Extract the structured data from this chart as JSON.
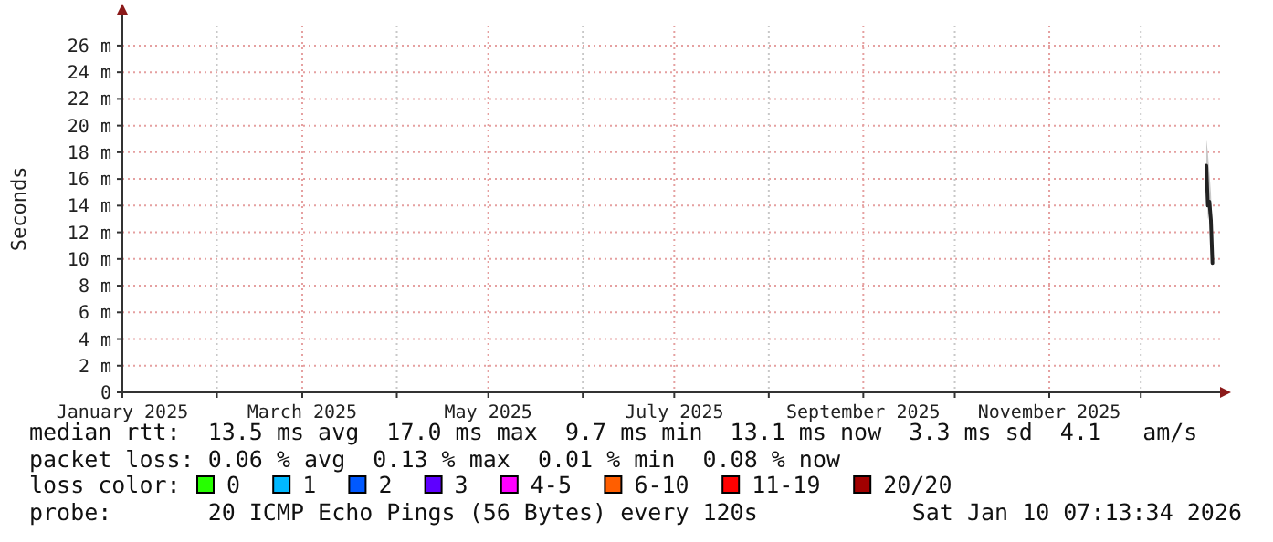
{
  "chart_data": {
    "type": "line",
    "ylabel": "Seconds",
    "xlim": [
      "2025-01-01",
      "2025-12-27"
    ],
    "xticks": [
      {
        "value": "2025-01-01",
        "label": "January 2025"
      },
      {
        "value": "2025-02-01",
        "label": null
      },
      {
        "value": "2025-03-01",
        "label": "March 2025"
      },
      {
        "value": "2025-04-01",
        "label": null
      },
      {
        "value": "2025-05-01",
        "label": "May 2025"
      },
      {
        "value": "2025-06-01",
        "label": null
      },
      {
        "value": "2025-07-01",
        "label": "July 2025"
      },
      {
        "value": "2025-08-01",
        "label": null
      },
      {
        "value": "2025-09-01",
        "label": "September 2025"
      },
      {
        "value": "2025-10-01",
        "label": null
      },
      {
        "value": "2025-11-01",
        "label": "November 2025"
      },
      {
        "value": "2025-12-01",
        "label": null
      }
    ],
    "ylim": [
      0,
      27.5
    ],
    "yticks": [
      0,
      {
        "value": 2,
        "label": "2 m"
      },
      {
        "value": 4,
        "label": "4 m"
      },
      {
        "value": 6,
        "label": "6 m"
      },
      {
        "value": 8,
        "label": "8 m"
      },
      {
        "value": 10,
        "label": "10 m"
      },
      {
        "value": 12,
        "label": "12 m"
      },
      {
        "value": 14,
        "label": "14 m"
      },
      {
        "value": 16,
        "label": "16 m"
      },
      {
        "value": 18,
        "label": "18 m"
      },
      {
        "value": 20,
        "label": "20 m"
      },
      {
        "value": 22,
        "label": "22 m"
      },
      {
        "value": 24,
        "label": "24 m"
      },
      {
        "value": 26,
        "label": "26 m"
      }
    ],
    "grid": true,
    "legend": "bottom",
    "legend_title": "loss color:",
    "series": [
      {
        "color": "#222222",
        "x": [
          "2025-12-22T12:00",
          "2025-12-23T00:00",
          "2025-12-23T12:00",
          "2025-12-24T00:00",
          "2025-12-24T12:00"
        ],
        "values": [
          17.0,
          14.0,
          14.3,
          12.9,
          9.7
        ],
        "lower": [
          16.5,
          13.0,
          13.5,
          11.5,
          9.5
        ],
        "upper": [
          19.0,
          18.0,
          16.5,
          15.0,
          12.0
        ]
      },
      {
        "name": "0",
        "color": "#26ff00"
      },
      {
        "name": "1",
        "color": "#00b8ff"
      },
      {
        "name": "2",
        "color": "#0059ff"
      },
      {
        "name": "3",
        "color": "#5e00ff"
      },
      {
        "name": "4-5",
        "color": "#ff00ff"
      },
      {
        "name": "6-10",
        "color": "#ff5e00"
      },
      {
        "name": "11-19",
        "color": "#ff0000"
      },
      {
        "name": "20/20",
        "color": "#a10000"
      }
    ],
    "annotations": [
      "median rtt:  13.5 ms avg  17.0 ms max  9.7 ms min  13.1 ms now  3.3 ms sd  4.1   am/s",
      "packet loss: 0.06 % avg  0.13 % max  0.01 % min  0.08 % now",
      "probe:       20 ICMP Echo Pings (56 Bytes) every 120s",
      "Sat Jan 10 07:13:34 2026"
    ]
  }
}
